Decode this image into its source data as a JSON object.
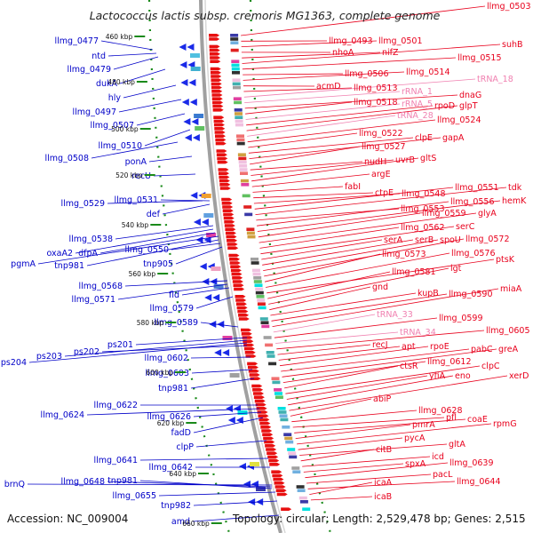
{
  "header": {
    "title": "Lactococcus lactis subsp. cremoris MG1363, complete genome"
  },
  "footer": {
    "accession": "Accession: NC_009004",
    "summary": "Topology: circular; Length: 2,529,478 bp; Genes: 2,515"
  },
  "colors": {
    "left_label": "#0000c8",
    "right_label": "#e8001c",
    "rna_label": "#f080b0",
    "backbone": "#a0a0a0",
    "kbp_marker": "#1a8a1a"
  },
  "kbp_ticks": [
    "460 kbp",
    "480 kbp",
    "500 kbp",
    "520 kbp",
    "540 kbp",
    "560 kbp",
    "580 kbp",
    "600 kbp",
    "620 kbp",
    "640 kbp",
    "660 kbp"
  ],
  "left_labels": [
    "llmg_0477",
    "ntd",
    "llmg_0479",
    "dukA",
    "hly",
    "llmg_0497",
    "llmg_0507",
    "llmg_0510",
    "llmg_0508",
    "ponA",
    "recU",
    "llmg_0529",
    "llmg_0531",
    "def",
    "llmg_0538",
    "oxaA2",
    "dfpA",
    "pgmA",
    "tnp981",
    "llmg_0550",
    "tnp905",
    "llmg_0568",
    "llmg_0571",
    "fld",
    "llmg_0579",
    "llmg_0589",
    "ps201",
    "ps203",
    "ps204",
    "ps202",
    "llmg_0602",
    "llmg_0603",
    "tnp981",
    "llmg_0622",
    "llmg_0624",
    "llmg_0626",
    "fadD",
    "clpP",
    "llmg_0641",
    "llmg_0642",
    "brnQ",
    "llmg_0648",
    "tnp981",
    "llmg_0655",
    "tnp982",
    "amd"
  ],
  "right_labels": [
    "llmg_0503",
    "llmg_0493",
    "llmg_0501",
    "nhoA",
    "nifZ",
    "suhB",
    "llmg_0515",
    "llmg_0506",
    "llmg_0514",
    "acmD",
    "llmg_0513",
    "tRNA_18",
    "rRNA_1",
    "dnaG",
    "llmg_0518",
    "rRNA_5",
    "rpoD",
    "glpT",
    "tRNA_28",
    "llmg_0524",
    "llmg_0522",
    "clpE",
    "gapA",
    "llmg_0527",
    "nudH",
    "uvrB",
    "gltS",
    "argE",
    "fabI",
    "ctpE",
    "llmg_0548",
    "llmg_0551",
    "tdk",
    "llmg_0553",
    "llmg_0556",
    "hemK",
    "llmg_0559",
    "glyA",
    "llmg_0562",
    "serC",
    "serA",
    "serB",
    "spoU",
    "llmg_0572",
    "llmg_0573",
    "llmg_0576",
    "ptsK",
    "llmg_0581",
    "lgt",
    "gnd",
    "kupB",
    "llmg_0590",
    "miaA",
    "tRNA_33",
    "llmg_0599",
    "tRNA_34",
    "llmg_0605",
    "recJ",
    "apt",
    "rpoE",
    "pabC",
    "greA",
    "llmg_0612",
    "ctsR",
    "clpC",
    "yfiA",
    "eno",
    "xerD",
    "abiP",
    "llmg_0628",
    "pfl",
    "coaE",
    "pmrA",
    "rpmG",
    "pycA",
    "gltA",
    "citB",
    "icd",
    "spxA",
    "llmg_0639",
    "pacL",
    "llmg_0644",
    "icaA",
    "icaB"
  ]
}
